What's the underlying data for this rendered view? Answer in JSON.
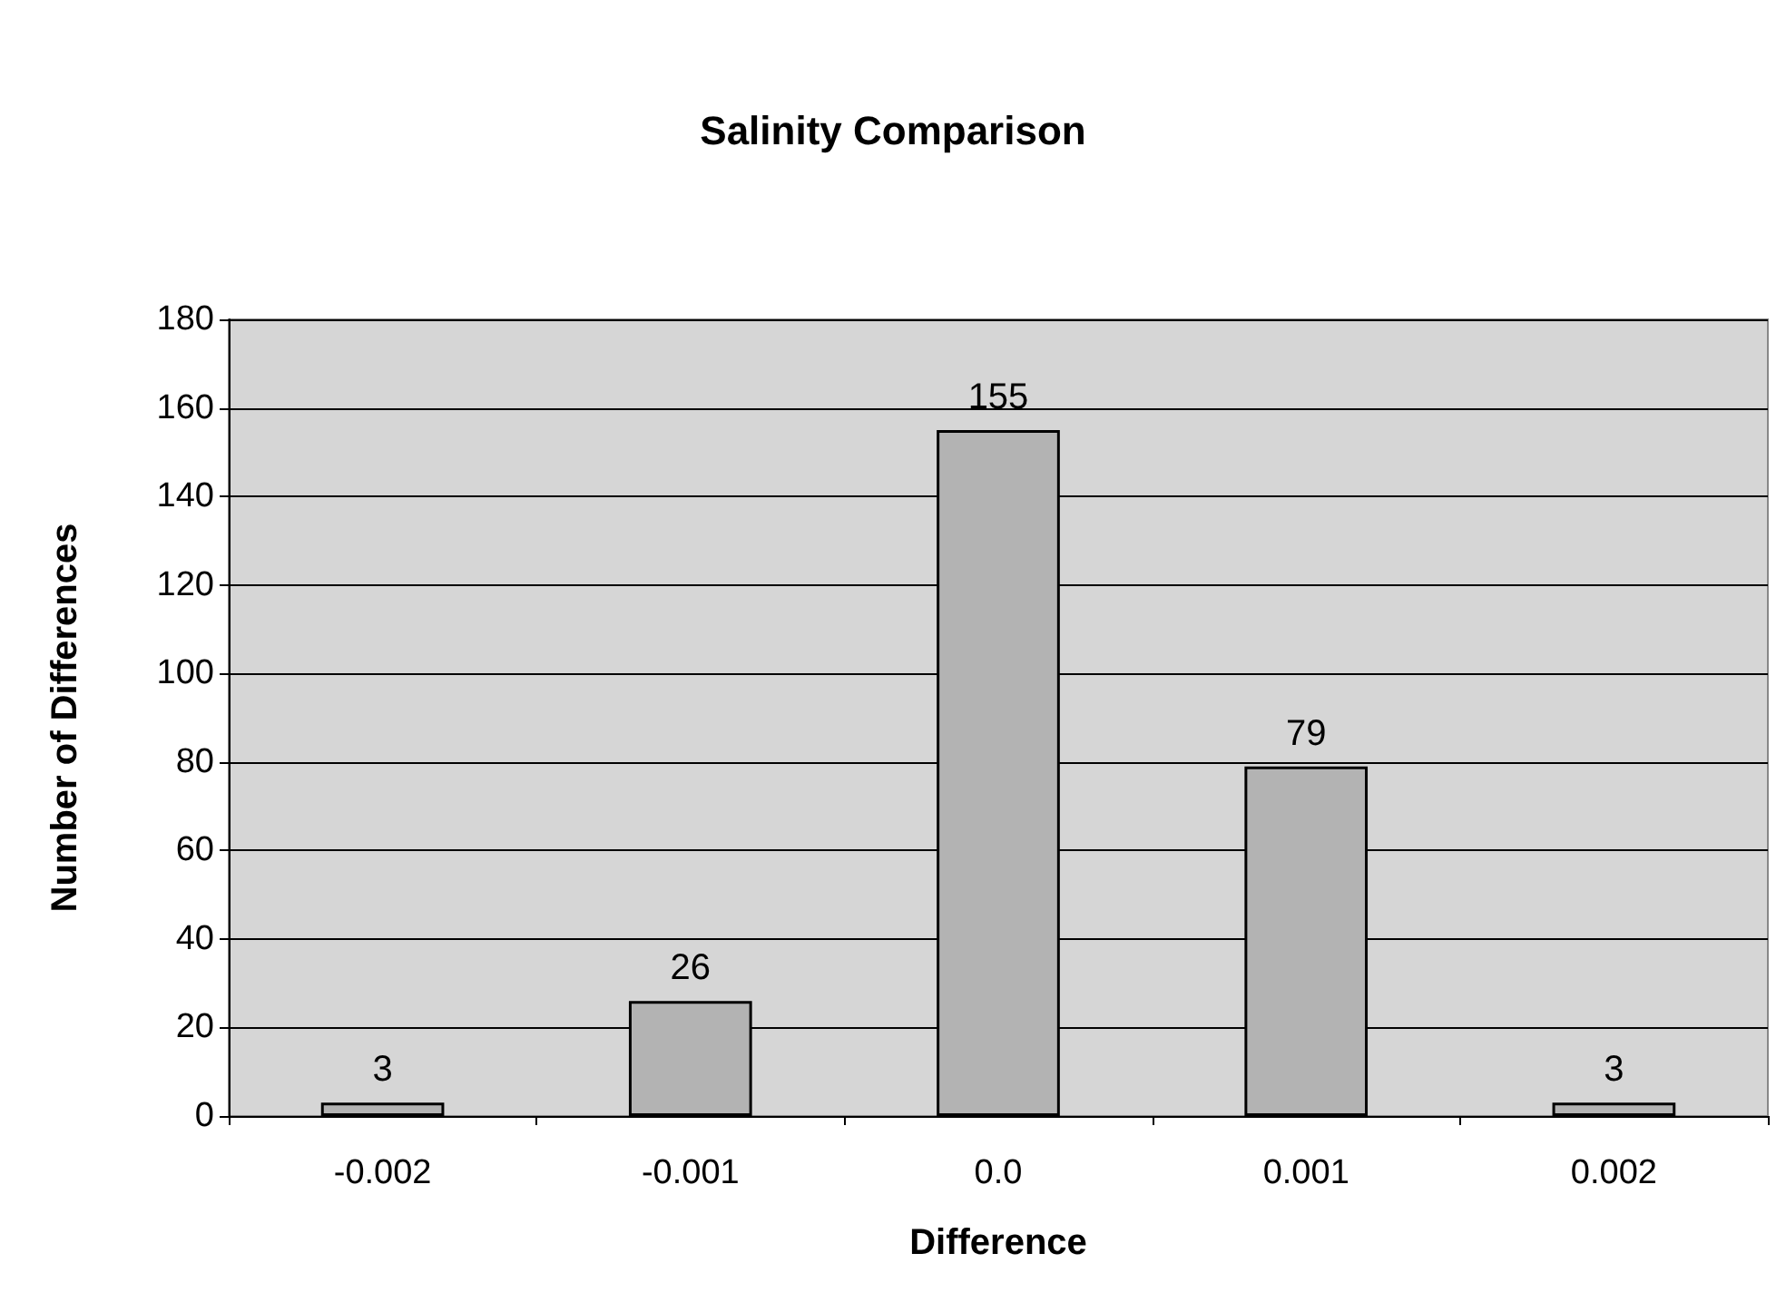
{
  "chart_data": {
    "type": "bar",
    "title": "Salinity Comparison",
    "xlabel": "Difference",
    "ylabel": "Number of Differences",
    "categories": [
      "-0.002",
      "-0.001",
      "0.0",
      "0.001",
      "0.002"
    ],
    "values": [
      3,
      26,
      155,
      79,
      3
    ],
    "color": "#b3b3b3",
    "ylim": [
      0,
      180
    ],
    "yticks": [
      0,
      20,
      40,
      60,
      80,
      100,
      120,
      140,
      160,
      180
    ],
    "grid": "y",
    "data_labels": true
  }
}
